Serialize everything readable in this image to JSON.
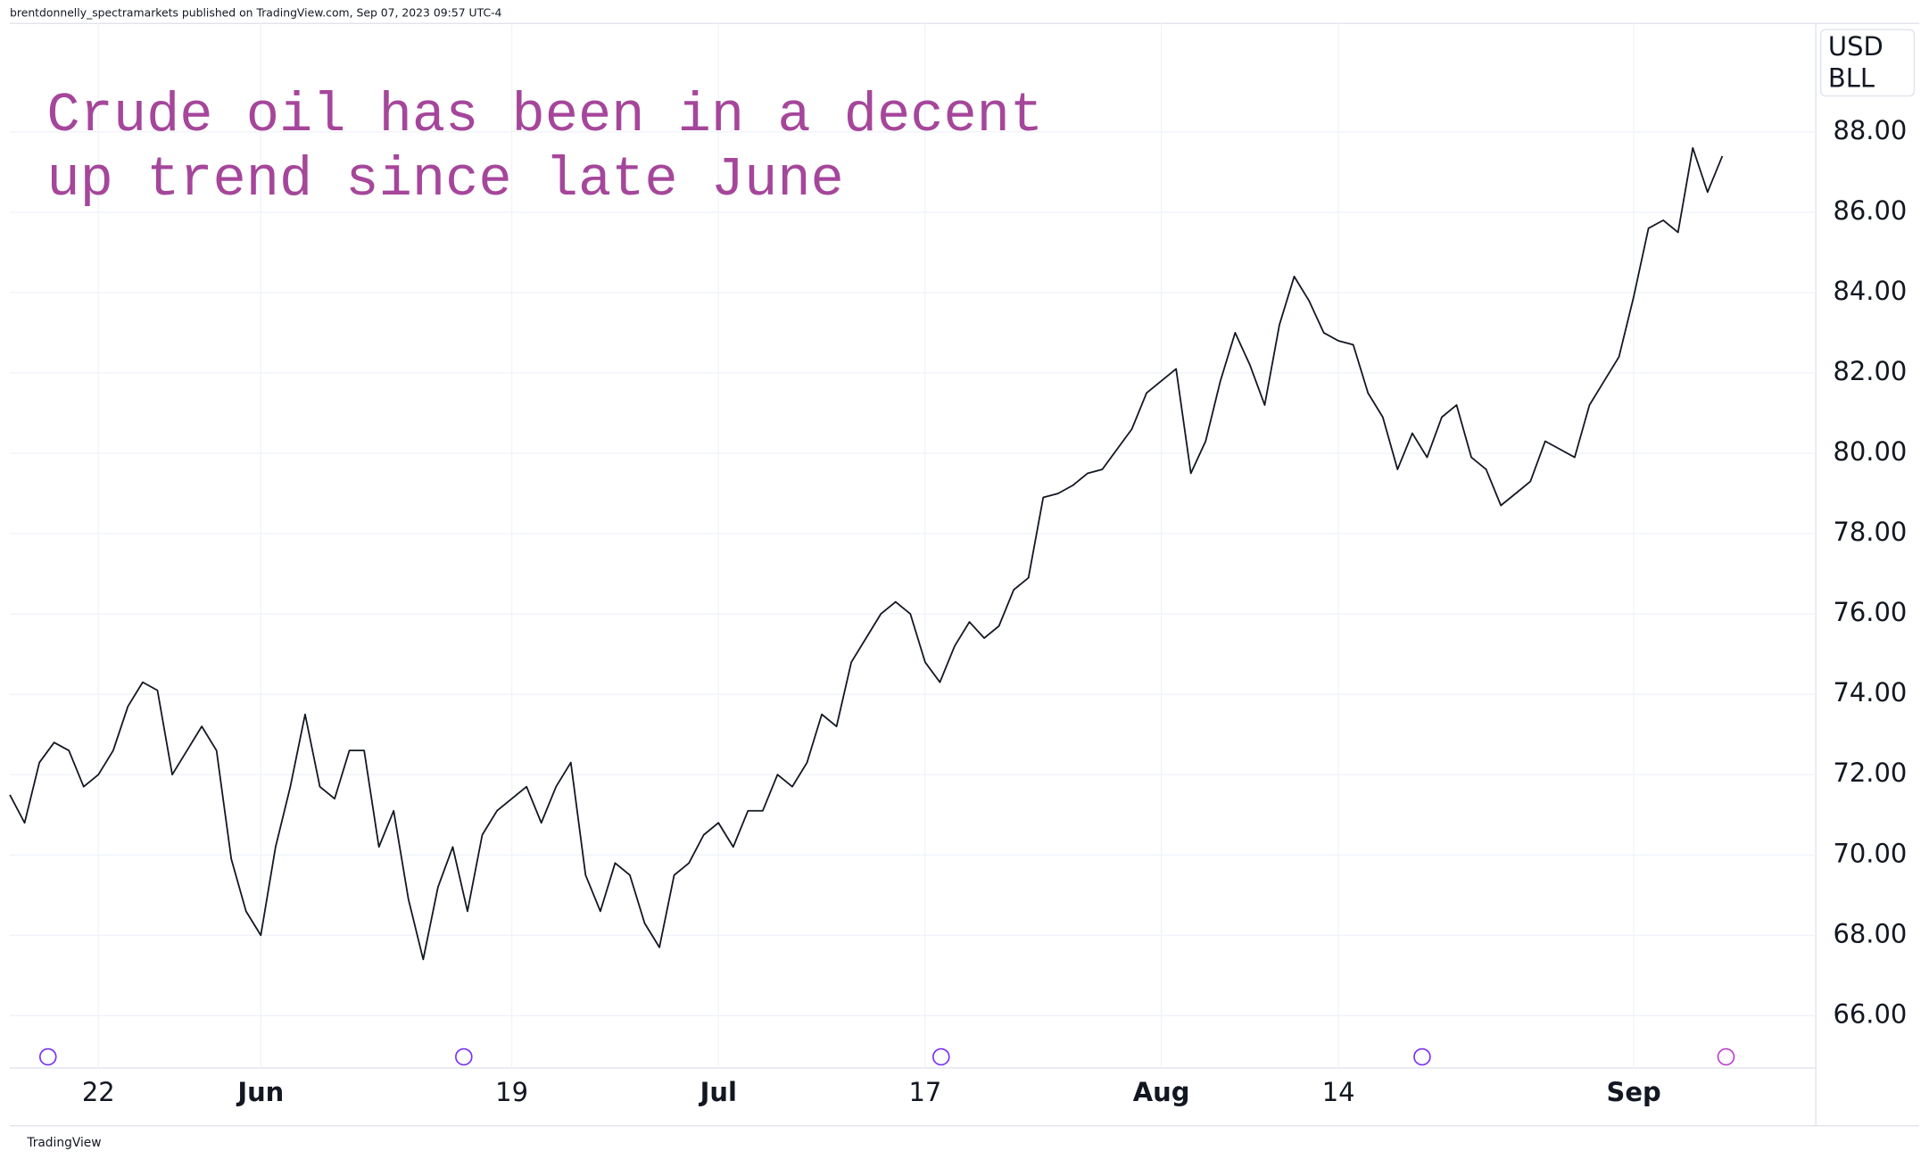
{
  "header": "brentdonnelly_spectramarkets published on TradingView.com, Sep 07, 2023 09:57 UTC-4",
  "footer": "TradingView",
  "chart_data": {
    "type": "line",
    "annotation": [
      "Crude oil has been in a decent",
      "up trend since late June"
    ],
    "unit": [
      "USD",
      "BLL"
    ],
    "categories": [
      null,
      null,
      null,
      null,
      null,
      null,
      "22",
      null,
      null,
      null,
      null,
      null,
      null,
      null,
      null,
      null,
      null,
      "Jun",
      null,
      null,
      null,
      null,
      null,
      null,
      null,
      null,
      null,
      null,
      null,
      null,
      null,
      null,
      null,
      null,
      "19",
      null,
      null,
      null,
      null,
      null,
      null,
      null,
      null,
      null,
      null,
      null,
      null,
      null,
      "Jul",
      null,
      null,
      null,
      null,
      null,
      null,
      null,
      null,
      null,
      null,
      null,
      null,
      null,
      "17",
      null,
      null,
      null,
      null,
      null,
      null,
      null,
      null,
      null,
      null,
      null,
      null,
      null,
      null,
      null,
      "Aug",
      null,
      null,
      null,
      null,
      null,
      null,
      null,
      null,
      null,
      null,
      null,
      "14",
      null,
      null,
      null,
      null,
      null,
      null,
      null,
      null,
      null,
      null,
      null,
      null,
      null,
      null,
      null,
      null,
      null,
      null,
      null,
      "Sep",
      null,
      null,
      null,
      null,
      null,
      null
    ],
    "series": [
      {
        "color": "#131722",
        "values": [
          71.5,
          70.8,
          72.3,
          72.8,
          72.6,
          71.7,
          72.0,
          72.6,
          73.7,
          74.3,
          74.1,
          72.0,
          72.6,
          73.2,
          72.6,
          69.9,
          68.6,
          68.0,
          70.2,
          71.7,
          73.5,
          71.7,
          71.4,
          72.6,
          72.6,
          70.2,
          71.1,
          68.9,
          67.4,
          69.2,
          70.2,
          68.6,
          70.5,
          71.1,
          71.4,
          71.7,
          70.8,
          71.7,
          72.3,
          69.5,
          68.6,
          69.8,
          69.5,
          68.3,
          67.7,
          69.5,
          69.8,
          70.5,
          70.8,
          70.2,
          71.1,
          71.1,
          72.0,
          71.7,
          72.3,
          73.5,
          73.2,
          74.8,
          75.4,
          76.0,
          76.3,
          76.0,
          74.8,
          74.3,
          75.2,
          75.8,
          75.4,
          75.7,
          76.6,
          76.9,
          78.9,
          79.0,
          79.2,
          79.5,
          79.6,
          80.1,
          80.6,
          81.5,
          81.8,
          82.1,
          79.5,
          80.3,
          81.8,
          83.0,
          82.2,
          81.2,
          83.2,
          84.4,
          83.8,
          83.0,
          82.8,
          82.7,
          81.5,
          80.9,
          79.6,
          80.5,
          79.9,
          80.9,
          81.2,
          79.9,
          79.6,
          78.7,
          79.0,
          79.3,
          80.3,
          80.1,
          79.9,
          81.2,
          81.8,
          82.4,
          83.9,
          85.6,
          85.8,
          85.5,
          87.6,
          86.5,
          87.4
        ]
      }
    ],
    "ylim": [
      64.7,
      90.7
    ],
    "yticks": [
      {
        "value": 66,
        "label": "66.00"
      },
      {
        "value": 68,
        "label": "68.00"
      },
      {
        "value": 70,
        "label": "70.00"
      },
      {
        "value": 72,
        "label": "72.00"
      },
      {
        "value": 74,
        "label": "74.00"
      },
      {
        "value": 76,
        "label": "76.00"
      },
      {
        "value": 78,
        "label": "78.00"
      },
      {
        "value": 80,
        "label": "80.00"
      },
      {
        "value": 82,
        "label": "82.00"
      },
      {
        "value": 84,
        "label": "84.00"
      },
      {
        "value": 86,
        "label": "86.00"
      },
      {
        "value": 88,
        "label": "88.00"
      }
    ],
    "grid": true
  }
}
